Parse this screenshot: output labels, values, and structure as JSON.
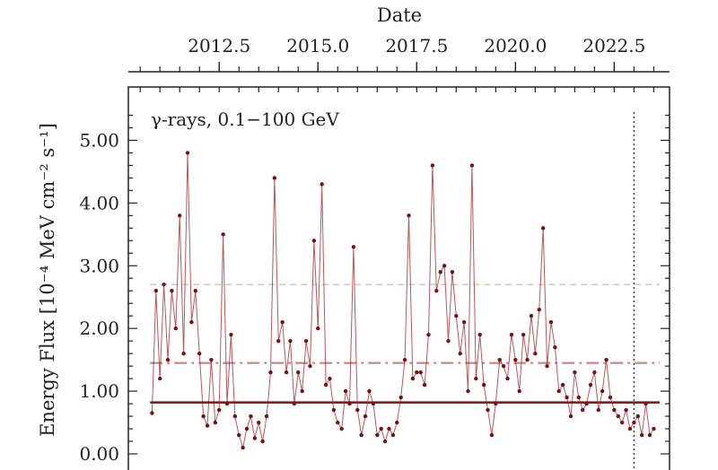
{
  "chart_data": {
    "type": "line",
    "annotation": "γ-rays, 0.1−100 GeV",
    "xlabel": "Date",
    "ylabel": "Energy Flux [10⁻⁴ MeV cm⁻² s⁻¹]",
    "x_unit": "year",
    "xlim": [
      2010.2,
      2023.9
    ],
    "ylim": [
      -0.3,
      5.85
    ],
    "x_ticks": [
      {
        "value": 2012.5,
        "label": "2012.5"
      },
      {
        "value": 2015.0,
        "label": "2015.0"
      },
      {
        "value": 2017.5,
        "label": "2017.5"
      },
      {
        "value": 2020.0,
        "label": "2020.0"
      },
      {
        "value": 2022.5,
        "label": "2022.5"
      }
    ],
    "y_ticks": [
      {
        "value": 0.0,
        "label": "0.00"
      },
      {
        "value": 1.0,
        "label": "1.00"
      },
      {
        "value": 2.0,
        "label": "2.00"
      },
      {
        "value": 3.0,
        "label": "3.00"
      },
      {
        "value": 4.0,
        "label": "4.00"
      },
      {
        "value": 5.0,
        "label": "5.00"
      }
    ],
    "reference_lines": [
      {
        "style": "solid",
        "y": 0.82,
        "x_start": 2010.75,
        "x_end": 2023.65,
        "color": "#8b1a1a"
      },
      {
        "style": "dashdot",
        "y": 1.45,
        "x_start": 2010.75,
        "x_end": 2023.65,
        "color": "#d08a8a"
      },
      {
        "style": "dashed",
        "y": 2.7,
        "x_start": 2010.75,
        "x_end": 2023.65,
        "color": "#e0c0b0"
      }
    ],
    "vertical_marker": {
      "x": 2023.0,
      "style": "dotted",
      "color": "#333333"
    },
    "series_color": "#a31f1f",
    "series": [
      {
        "x": [
          2010.8,
          2010.9,
          2011.0,
          2011.1,
          2011.2,
          2011.3,
          2011.4,
          2011.5,
          2011.6,
          2011.7,
          2011.8,
          2011.9,
          2012.0,
          2012.1,
          2012.2,
          2012.3,
          2012.4,
          2012.5,
          2012.6,
          2012.7,
          2012.8,
          2012.9,
          2013.0,
          2013.1,
          2013.2,
          2013.3,
          2013.4,
          2013.5,
          2013.6,
          2013.7,
          2013.8,
          2013.9,
          2014.0,
          2014.1,
          2014.2,
          2014.3,
          2014.4,
          2014.5,
          2014.6,
          2014.7,
          2014.8,
          2014.9,
          2015.0,
          2015.1,
          2015.2,
          2015.3,
          2015.4,
          2015.5,
          2015.6,
          2015.7,
          2015.8,
          2015.9,
          2016.0,
          2016.1,
          2016.2,
          2016.3,
          2016.4,
          2016.5,
          2016.6,
          2016.7,
          2016.8,
          2016.9,
          2017.0,
          2017.1,
          2017.2,
          2017.3,
          2017.4,
          2017.5,
          2017.6,
          2017.7,
          2017.8,
          2017.9,
          2018.0,
          2018.1,
          2018.2,
          2018.3,
          2018.4,
          2018.5,
          2018.6,
          2018.7,
          2018.8,
          2018.9,
          2019.0,
          2019.1,
          2019.2,
          2019.3,
          2019.4,
          2019.5,
          2019.6,
          2019.7,
          2019.8,
          2019.9,
          2020.0,
          2020.1,
          2020.2,
          2020.3,
          2020.4,
          2020.5,
          2020.6,
          2020.7,
          2020.8,
          2020.9,
          2021.0,
          2021.1,
          2021.2,
          2021.3,
          2021.4,
          2021.5,
          2021.6,
          2021.7,
          2021.8,
          2021.9,
          2022.0,
          2022.1,
          2022.2,
          2022.3,
          2022.4,
          2022.5,
          2022.6,
          2022.7,
          2022.8,
          2022.9,
          2023.0,
          2023.1,
          2023.2,
          2023.3,
          2023.4,
          2023.5
        ],
        "y": [
          0.65,
          2.6,
          1.2,
          2.7,
          1.5,
          2.6,
          2.0,
          3.8,
          1.6,
          4.8,
          2.1,
          2.6,
          1.6,
          0.6,
          0.45,
          1.5,
          0.5,
          0.7,
          3.5,
          0.8,
          1.9,
          0.6,
          0.3,
          0.1,
          0.4,
          0.6,
          0.25,
          0.5,
          0.2,
          0.6,
          1.3,
          4.4,
          1.8,
          2.1,
          1.3,
          1.8,
          0.8,
          1.3,
          1.0,
          1.8,
          1.4,
          3.4,
          2.0,
          4.3,
          1.1,
          1.2,
          0.7,
          0.5,
          0.4,
          1.0,
          0.8,
          3.3,
          0.7,
          0.3,
          0.6,
          1.0,
          0.8,
          0.3,
          0.4,
          0.2,
          0.4,
          0.3,
          0.5,
          0.9,
          1.5,
          3.8,
          1.2,
          1.3,
          1.3,
          1.1,
          1.9,
          4.6,
          2.6,
          2.9,
          3.0,
          1.8,
          2.9,
          2.2,
          1.6,
          2.1,
          1.0,
          4.6,
          1.2,
          1.9,
          1.1,
          0.7,
          0.3,
          0.8,
          1.5,
          1.4,
          1.2,
          1.9,
          1.5,
          1.0,
          1.9,
          1.5,
          2.2,
          1.6,
          2.3,
          3.6,
          1.4,
          2.1,
          1.7,
          1.0,
          1.1,
          0.9,
          0.6,
          1.3,
          0.9,
          0.7,
          0.8,
          1.1,
          1.3,
          0.7,
          1.0,
          1.5,
          0.9,
          0.7,
          0.6,
          0.5,
          0.7,
          0.4,
          0.5,
          0.6,
          0.3,
          0.8,
          0.3,
          0.4
        ]
      }
    ]
  }
}
